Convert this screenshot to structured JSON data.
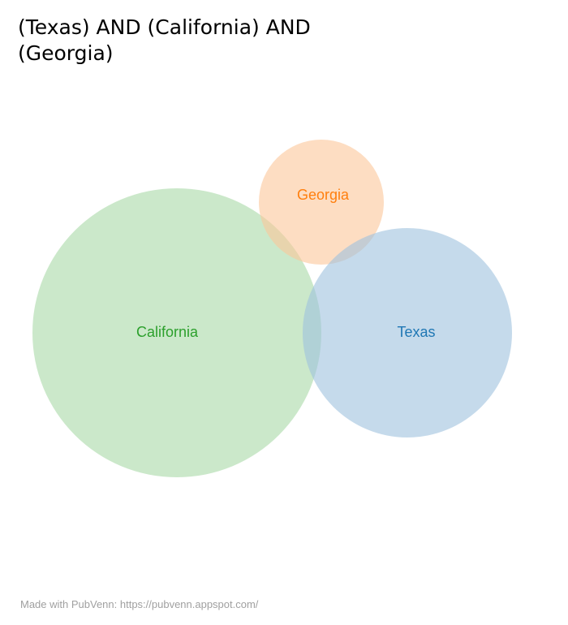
{
  "title": "(Texas) AND (California) AND (Georgia)",
  "sets": [
    {
      "id": "california",
      "label": "California",
      "color": "#2ca02c",
      "fill": "#a9d8a6"
    },
    {
      "id": "georgia",
      "label": "Georgia",
      "color": "#ff7f0e",
      "fill": "#fcc79a"
    },
    {
      "id": "texas",
      "label": "Texas",
      "color": "#1f77b4",
      "fill": "#9fc2de"
    }
  ],
  "footer": "Made with PubVenn: https://pubvenn.appspot.com/"
}
